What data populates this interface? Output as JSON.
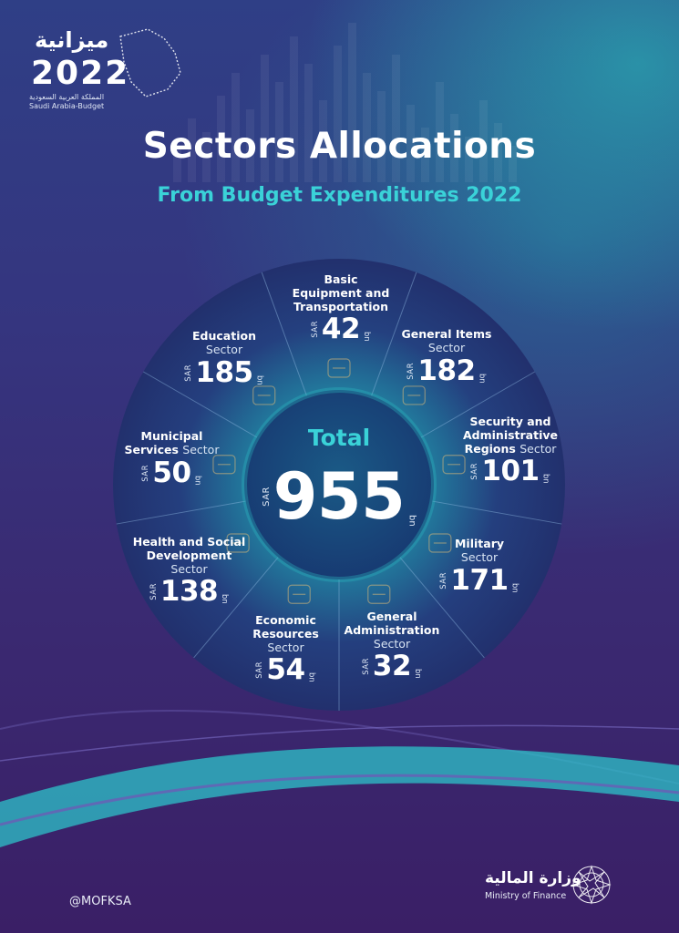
{
  "logo": {
    "arabic_word": "ميزانية",
    "year": "2022",
    "subtitle_ar": "المملكة العربية السعودية",
    "subtitle_en": "Saudi Arabia-Budget"
  },
  "header": {
    "title": "Sectors Allocations",
    "subtitle": "From Budget Expenditures 2022"
  },
  "chart_data": {
    "type": "pie",
    "title": "Sectors Allocations",
    "subtitle": "From Budget Expenditures 2022",
    "currency": "SAR",
    "unit": "bn",
    "total": {
      "label": "Total",
      "value": 955
    },
    "segments": [
      {
        "name": "Basic Equipment and Transportation",
        "suffix": "",
        "value": 42,
        "icon": "train-icon"
      },
      {
        "name": "General Items",
        "suffix": "Sector",
        "value": 182,
        "icon": "document-icon"
      },
      {
        "name": "Security and Administrative Regions",
        "suffix": "Sector",
        "value": 101,
        "icon": "buildings-icon"
      },
      {
        "name": "Military",
        "suffix": "Sector",
        "value": 171,
        "icon": "military-badge-icon"
      },
      {
        "name": "General Administration",
        "suffix": "Sector",
        "value": 32,
        "icon": "gear-icon"
      },
      {
        "name": "Economic Resources",
        "suffix": "Sector",
        "value": 54,
        "icon": "coin-chart-icon"
      },
      {
        "name": "Health and Social Development",
        "suffix": "Sector",
        "value": 138,
        "icon": "heartbeat-icon"
      },
      {
        "name": "Municipal Services",
        "suffix": "Sector",
        "value": 50,
        "icon": "bench-icon"
      },
      {
        "name": "Education",
        "suffix": "Sector",
        "value": 185,
        "icon": "graduation-cap-icon"
      }
    ]
  },
  "labels": {
    "basic_l1": "Basic",
    "basic_l2": "Equipment and",
    "basic_l3": "Transportation",
    "general_items": "General Items",
    "security_l1": "Security and",
    "security_l2": "Administrative",
    "security_l3": "Regions",
    "military": "Military",
    "genadmin_l1": "General",
    "genadmin_l2": "Administration",
    "economic_l1": "Economic",
    "economic_l2": "Resources",
    "health_l1": "Health and Social",
    "health_l2": "Development",
    "municipal_l1": "Municipal",
    "municipal_l2": "Services",
    "education": "Education",
    "sector": "Sector",
    "sar": "SAR",
    "bn": "bn"
  },
  "footer": {
    "handle": "@MOFKSA",
    "ministry_ar": "وزارة المالية",
    "ministry_en": "Ministry of Finance"
  },
  "colors": {
    "accent_teal": "#3ad2d8",
    "wheel_dark": "#213a7c",
    "wheel_center_glow": "#1fb3b8"
  }
}
